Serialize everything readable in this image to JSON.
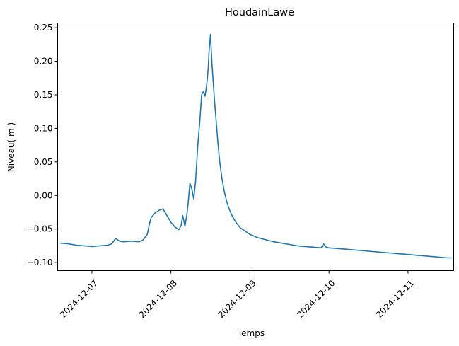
{
  "chart_data": {
    "type": "line",
    "title": "HoudainLawe",
    "xlabel": "Temps",
    "ylabel": "Niveau( m )",
    "grid": false,
    "x_tick_labels": [
      "2024-12-07",
      "2024-12-08",
      "2024-12-09",
      "2024-12-10",
      "2024-12-11"
    ],
    "y_ticks": [
      -0.1,
      -0.05,
      0.0,
      0.05,
      0.1,
      0.15,
      0.2,
      0.25
    ],
    "y_tick_labels": [
      "−0.10",
      "−0.05",
      "0.00",
      "0.05",
      "0.10",
      "0.15",
      "0.20",
      "0.25"
    ],
    "xlim": [
      "2024-12-06T13:36",
      "2024-12-11T13:52"
    ],
    "ylim": [
      -0.112,
      0.257
    ],
    "line_color": "#1f77b4",
    "series": [
      {
        "x": [
          "2024-12-06T14:24",
          "2024-12-06T16:48",
          "2024-12-06T19:12",
          "2024-12-06T21:36",
          "2024-12-07T00:00",
          "2024-12-07T02:24",
          "2024-12-07T04:48",
          "2024-12-07T06:00",
          "2024-12-07T07:12",
          "2024-12-07T08:24",
          "2024-12-07T09:36",
          "2024-12-07T12:00",
          "2024-12-07T14:24",
          "2024-12-07T15:36",
          "2024-12-07T16:48",
          "2024-12-07T17:30",
          "2024-12-07T18:00",
          "2024-12-07T18:30",
          "2024-12-07T19:12",
          "2024-12-07T20:24",
          "2024-12-07T21:36",
          "2024-12-07T22:48",
          "2024-12-08T00:00",
          "2024-12-08T01:12",
          "2024-12-08T02:24",
          "2024-12-08T03:05",
          "2024-12-08T03:36",
          "2024-12-08T04:15",
          "2024-12-08T04:48",
          "2024-12-08T05:10",
          "2024-12-08T05:45",
          "2024-12-08T06:20",
          "2024-12-08T06:55",
          "2024-12-08T07:30",
          "2024-12-08T08:10",
          "2024-12-08T08:50",
          "2024-12-08T09:20",
          "2024-12-08T09:50",
          "2024-12-08T10:20",
          "2024-12-08T10:45",
          "2024-12-08T11:05",
          "2024-12-08T11:20",
          "2024-12-08T11:35",
          "2024-12-08T12:00",
          "2024-12-08T12:25",
          "2024-12-08T12:50",
          "2024-12-08T13:15",
          "2024-12-08T13:45",
          "2024-12-08T14:15",
          "2024-12-08T14:50",
          "2024-12-08T15:30",
          "2024-12-08T16:15",
          "2024-12-08T17:00",
          "2024-12-08T17:50",
          "2024-12-08T18:45",
          "2024-12-08T19:45",
          "2024-12-08T21:00",
          "2024-12-08T22:30",
          "2024-12-09T00:00",
          "2024-12-09T02:24",
          "2024-12-09T04:48",
          "2024-12-09T07:12",
          "2024-12-09T09:36",
          "2024-12-09T12:00",
          "2024-12-09T14:24",
          "2024-12-09T16:48",
          "2024-12-09T19:12",
          "2024-12-09T21:36",
          "2024-12-09T22:20",
          "2024-12-09T23:10",
          "2024-12-10T00:00",
          "2024-12-10T02:24",
          "2024-12-10T04:48",
          "2024-12-10T07:12",
          "2024-12-10T09:36",
          "2024-12-10T12:00",
          "2024-12-10T14:24",
          "2024-12-10T16:48",
          "2024-12-10T19:12",
          "2024-12-10T21:36",
          "2024-12-11T00:00",
          "2024-12-11T02:24",
          "2024-12-11T04:48",
          "2024-12-11T07:12",
          "2024-12-11T09:36",
          "2024-12-11T12:00",
          "2024-12-11T13:12"
        ],
        "values": [
          -0.071,
          -0.072,
          -0.074,
          -0.075,
          -0.076,
          -0.075,
          -0.074,
          -0.072,
          -0.064,
          -0.068,
          -0.069,
          -0.068,
          -0.069,
          -0.066,
          -0.058,
          -0.042,
          -0.033,
          -0.03,
          -0.026,
          -0.022,
          -0.02,
          -0.03,
          -0.04,
          -0.047,
          -0.051,
          -0.045,
          -0.03,
          -0.046,
          -0.03,
          -0.015,
          0.018,
          0.01,
          -0.005,
          0.022,
          0.075,
          0.115,
          0.15,
          0.155,
          0.148,
          0.16,
          0.175,
          0.19,
          0.215,
          0.24,
          0.2,
          0.17,
          0.14,
          0.11,
          0.08,
          0.05,
          0.025,
          0.005,
          -0.01,
          -0.022,
          -0.032,
          -0.04,
          -0.048,
          -0.053,
          -0.058,
          -0.063,
          -0.066,
          -0.069,
          -0.071,
          -0.073,
          -0.075,
          -0.076,
          -0.077,
          -0.078,
          -0.072,
          -0.077,
          -0.078,
          -0.079,
          -0.08,
          -0.081,
          -0.082,
          -0.083,
          -0.084,
          -0.085,
          -0.086,
          -0.087,
          -0.088,
          -0.089,
          -0.09,
          -0.091,
          -0.092,
          -0.093,
          -0.093
        ]
      }
    ]
  }
}
